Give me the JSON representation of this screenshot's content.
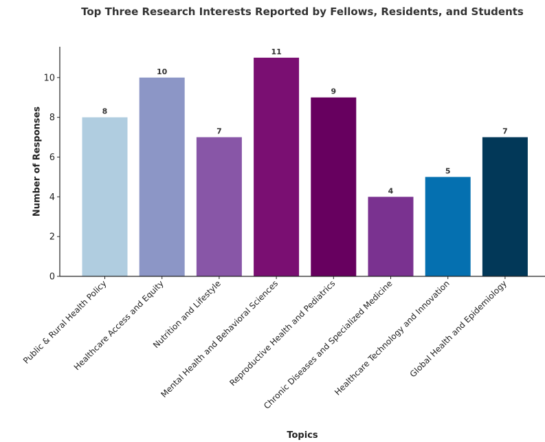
{
  "chart_data": {
    "type": "bar",
    "title": "Top Three Research Interests Reported by Fellows, Residents, and Students",
    "xlabel": "Topics",
    "ylabel": "Number of Responses",
    "categories": [
      "Public & Rural Health Policy",
      "Healthcare Access and Equity",
      "Nutrition and Lifestyle",
      "Mental Health and Behavioral Sciences",
      "Reproductive Health and Pediatrics",
      "Chronic Diseases and Specialized Medicine",
      "Healthcare Technology and Innovation",
      "Global Health and Epidemiology"
    ],
    "values": [
      8,
      10,
      7,
      11,
      9,
      4,
      5,
      7
    ],
    "colors": [
      "#b0cde0",
      "#8c96c6",
      "#8856a7",
      "#7a0f72",
      "#67005f",
      "#7a3290",
      "#0570b0",
      "#023858"
    ],
    "ylim": [
      0,
      11.55
    ],
    "yticks": [
      0,
      2,
      4,
      6,
      8,
      10
    ],
    "grid": false,
    "legend": "none"
  }
}
